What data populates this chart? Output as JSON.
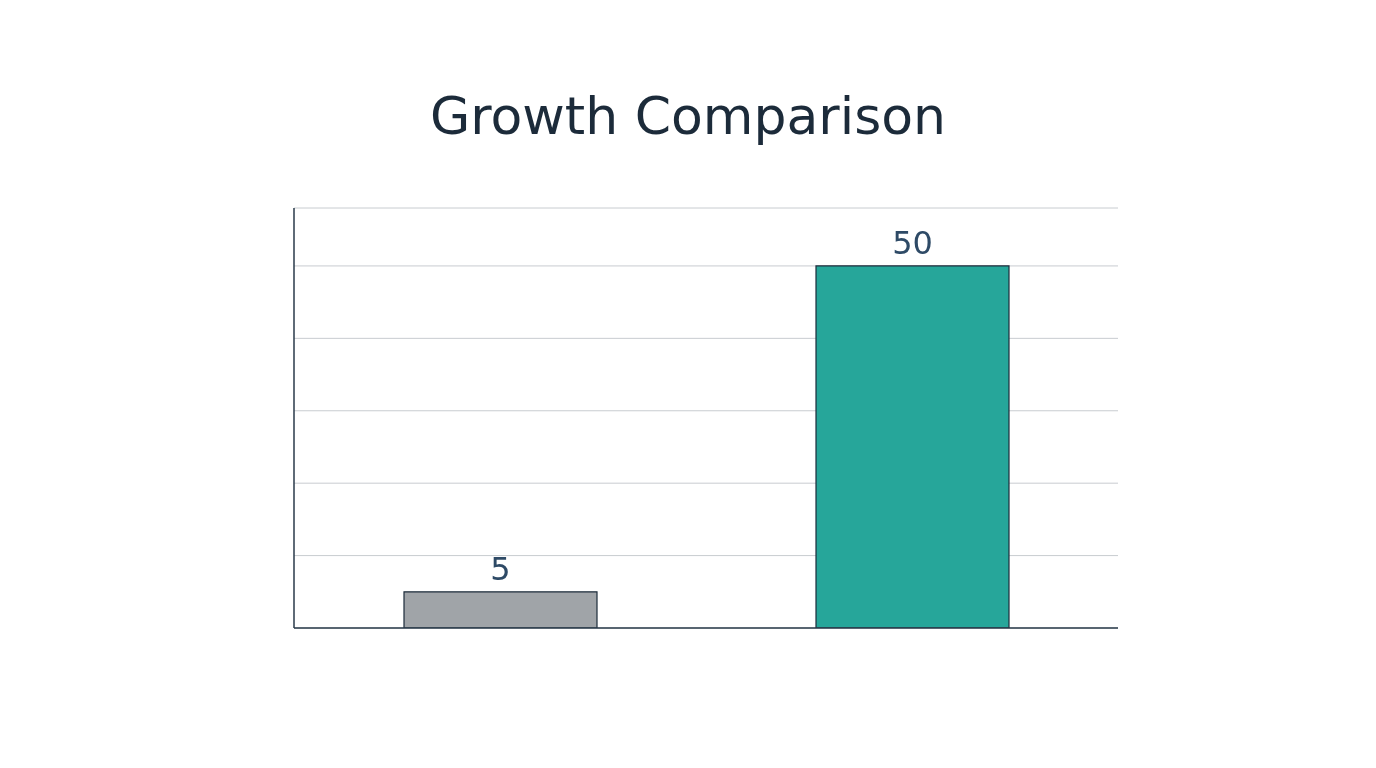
{
  "chart_data": {
    "type": "bar",
    "title": "Growth Comparison",
    "categories": [
      null,
      null
    ],
    "values": [
      5,
      50
    ],
    "colors": [
      "#a0a4a8",
      "#26a69a"
    ],
    "ylim": [
      0,
      58
    ],
    "tick_labels": false,
    "grid": "y",
    "data_labels": true
  }
}
